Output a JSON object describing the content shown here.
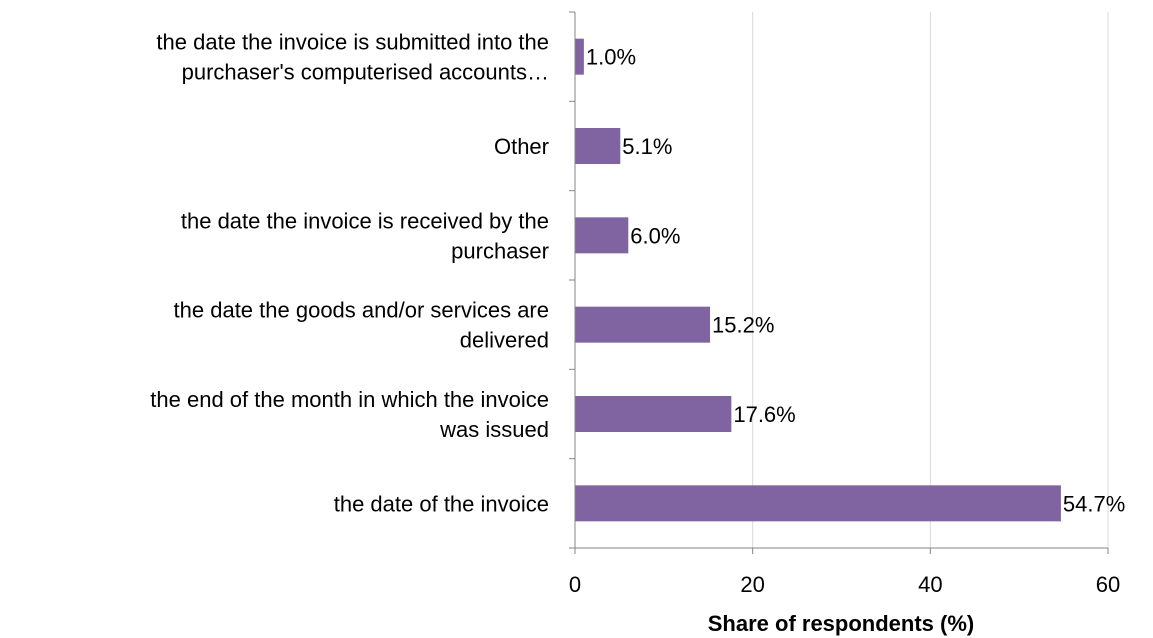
{
  "chart_data": {
    "type": "bar",
    "orientation": "horizontal",
    "categories": [
      [
        "the date the invoice is submitted into the",
        "purchaser's computerised accounts…"
      ],
      [
        "Other"
      ],
      [
        "the date the invoice is received by the",
        "purchaser"
      ],
      [
        "the date the goods and/or services are",
        "delivered"
      ],
      [
        "the end of the month in which the invoice",
        "was issued"
      ],
      [
        "the date of the invoice"
      ]
    ],
    "values": [
      1.0,
      5.1,
      6.0,
      15.2,
      17.6,
      54.7
    ],
    "data_labels": [
      "1.0%",
      "5.1%",
      "6.0%",
      "15.2%",
      "17.6%",
      "54.7%"
    ],
    "xlabel": "Share of respondents (%)",
    "xlim": [
      0,
      60
    ],
    "xticks": [
      0,
      20,
      40,
      60
    ],
    "grid": "vertical",
    "legend": "none",
    "bar_color": "#8064a2",
    "grid_color": "#d9d9d9",
    "axis_color": "#868686"
  }
}
